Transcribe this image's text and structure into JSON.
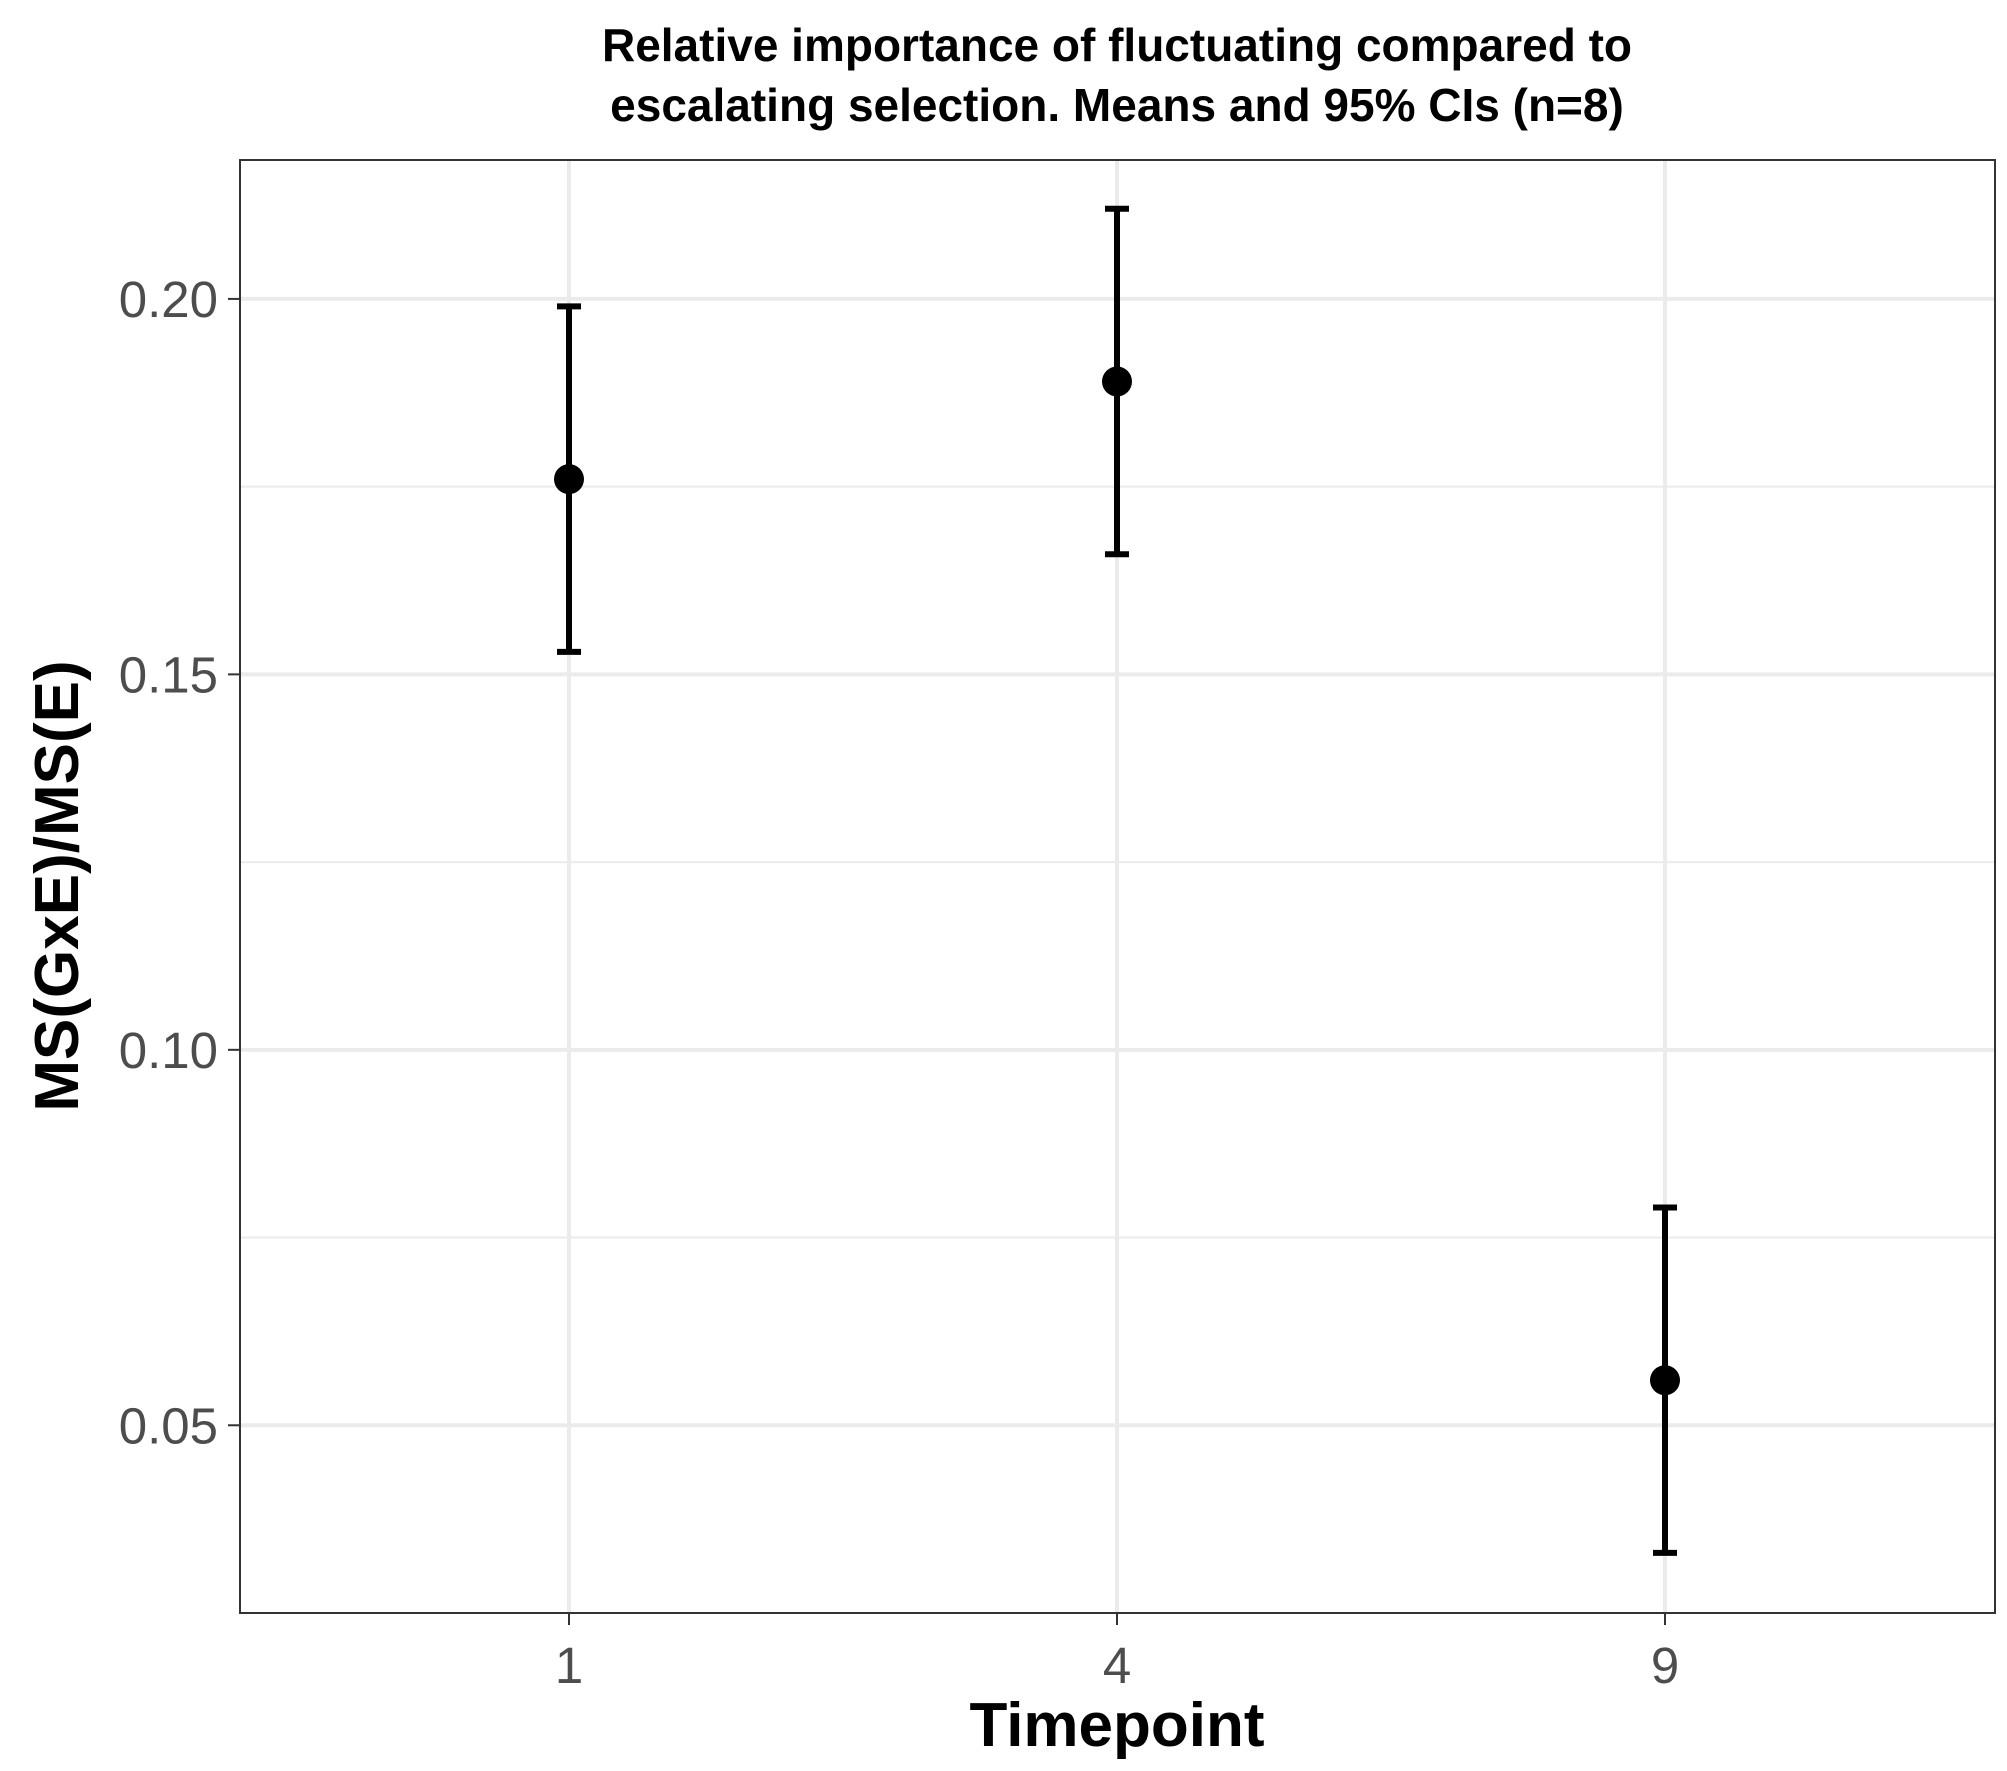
{
  "chart_data": {
    "type": "scatter",
    "title": "Relative importance of fluctuating compared to escalating selection. Means and 95% CIs (n=8)",
    "title_lines": [
      "Relative importance of fluctuating compared to",
      "escalating selection. Means and 95% CIs (n=8)"
    ],
    "xlabel": "Timepoint",
    "ylabel": "MS(GxE)/MS(E)",
    "categories": [
      "1",
      "4",
      "9"
    ],
    "series": [
      {
        "values": [
          0.176,
          0.189,
          0.056
        ],
        "ci_lower": [
          0.153,
          0.166,
          0.033
        ],
        "ci_upper": [
          0.199,
          0.212,
          0.079
        ]
      }
    ],
    "y_ticks": [
      "0.05",
      "0.10",
      "0.15",
      "0.20"
    ],
    "ylim": [
      0.025,
      0.2185
    ],
    "grid": true,
    "legend": "none",
    "colors": {
      "point": "#000000",
      "grid": "#ebebeb",
      "panel_border": "#333333",
      "tick_text": "#4d4d4d"
    }
  }
}
